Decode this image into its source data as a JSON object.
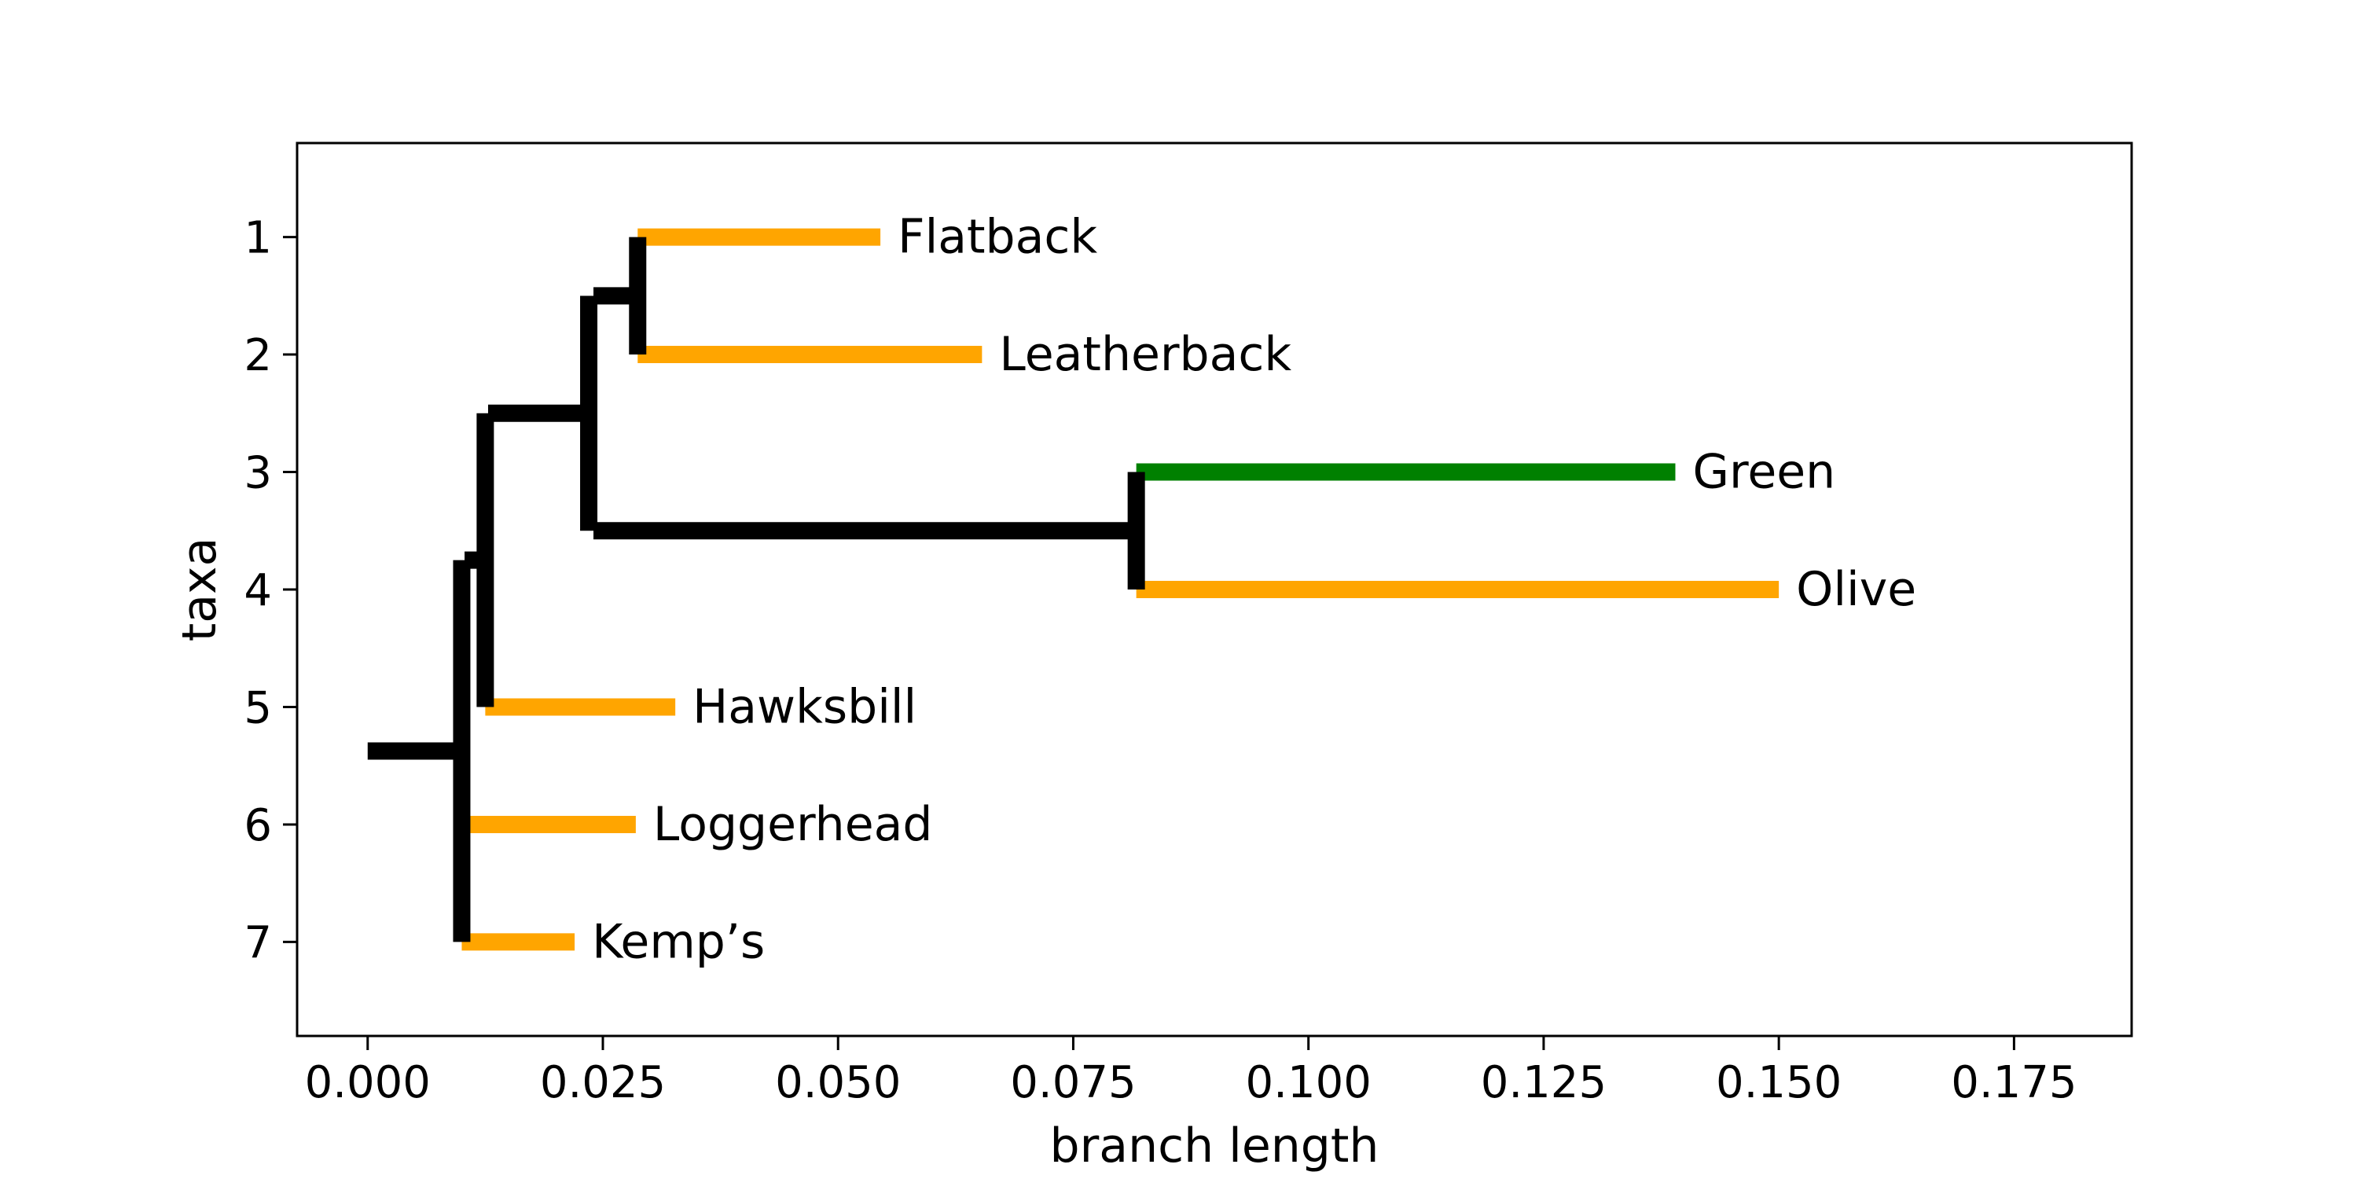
{
  "chart_data": {
    "type": "phylogenetic-tree",
    "title": "",
    "xlabel": "branch length",
    "ylabel": "taxa",
    "xlim": [
      -0.0075,
      0.1875
    ],
    "ylim": [
      7.8,
      0.2
    ],
    "x_ticks": [
      0.0,
      0.025,
      0.05,
      0.075,
      0.1,
      0.125,
      0.15,
      0.175
    ],
    "x_tick_labels": [
      "0.000",
      "0.025",
      "0.050",
      "0.075",
      "0.100",
      "0.125",
      "0.150",
      "0.175"
    ],
    "y_ticks": [
      1,
      2,
      3,
      4,
      5,
      6,
      7
    ],
    "y_tick_labels": [
      "1",
      "2",
      "3",
      "4",
      "5",
      "6",
      "7"
    ],
    "grid": false,
    "colors": {
      "internal": "#000000",
      "leaf_default": "#ffa500",
      "highlight": "#008000"
    },
    "root_branch": {
      "x0": 0.0,
      "x1": 0.0095,
      "y": 5.375
    },
    "internal_branches": [
      {
        "x0": 0.0103,
        "x1": 0.0122,
        "y": 3.75
      },
      {
        "x0": 0.0128,
        "x1": 0.0235,
        "y": 2.5
      },
      {
        "x0": 0.024,
        "x1": 0.0285,
        "y": 1.5
      },
      {
        "x0": 0.024,
        "x1": 0.0815,
        "y": 3.5
      }
    ],
    "verticals": [
      {
        "x": 0.01,
        "y0": 3.75,
        "y1": 7
      },
      {
        "x": 0.0125,
        "y0": 2.5,
        "y1": 5
      },
      {
        "x": 0.0235,
        "y0": 1.5,
        "y1": 3.5
      },
      {
        "x": 0.0287,
        "y0": 1,
        "y1": 2
      },
      {
        "x": 0.0817,
        "y0": 3,
        "y1": 4
      }
    ],
    "leaves": [
      {
        "name": "Flatback",
        "y": 1,
        "x0": 0.0287,
        "x1": 0.0545,
        "color": "#ffa500"
      },
      {
        "name": "Leatherback",
        "y": 2,
        "x0": 0.0287,
        "x1": 0.0653,
        "color": "#ffa500"
      },
      {
        "name": "Green",
        "y": 3,
        "x0": 0.0817,
        "x1": 0.139,
        "color": "#008000"
      },
      {
        "name": "Olive",
        "y": 4,
        "x0": 0.0817,
        "x1": 0.15,
        "color": "#ffa500"
      },
      {
        "name": "Hawksbill",
        "y": 5,
        "x0": 0.0125,
        "x1": 0.0327,
        "color": "#ffa500"
      },
      {
        "name": "Loggerhead",
        "y": 6,
        "x0": 0.01,
        "x1": 0.0285,
        "color": "#ffa500"
      },
      {
        "name": "Kemp’s",
        "y": 7,
        "x0": 0.01,
        "x1": 0.022,
        "color": "#ffa500"
      }
    ]
  }
}
